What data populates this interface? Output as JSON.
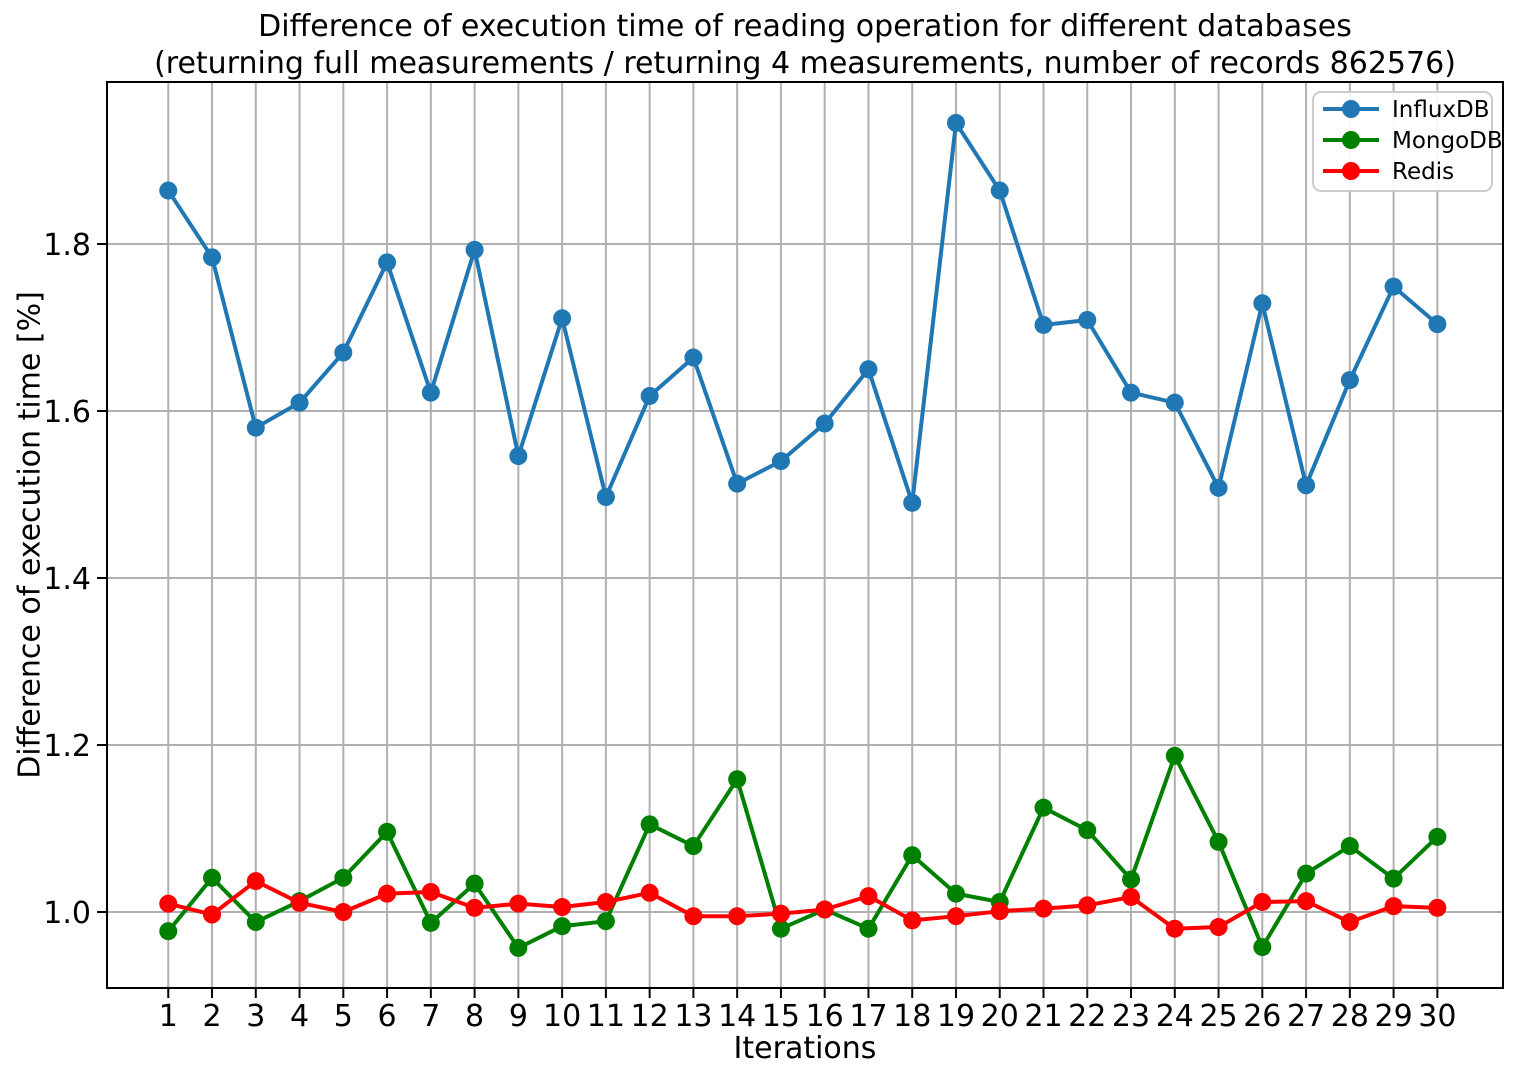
{
  "title": {
    "line1": "Difference of execution time of reading operation for different databases",
    "line2": "(returning full measurements / returning 4 measurements, number of records 862576)"
  },
  "chart_data": {
    "type": "line",
    "title": "Difference of execution time of reading operation for different databases (returning full measurements / returning 4 measurements, number of records 862576)",
    "xlabel": "Iterations",
    "ylabel": "Difference of execution time [%]",
    "x": [
      1,
      2,
      3,
      4,
      5,
      6,
      7,
      8,
      9,
      10,
      11,
      12,
      13,
      14,
      15,
      16,
      17,
      18,
      19,
      20,
      21,
      22,
      23,
      24,
      25,
      26,
      27,
      28,
      29,
      30
    ],
    "series": [
      {
        "name": "InfluxDB",
        "color": "#1f77b4",
        "values": [
          1.864,
          1.784,
          1.58,
          1.61,
          1.67,
          1.778,
          1.622,
          1.793,
          1.546,
          1.711,
          1.497,
          1.618,
          1.664,
          1.513,
          1.54,
          1.585,
          1.65,
          1.49,
          1.945,
          1.864,
          1.703,
          1.709,
          1.622,
          1.61,
          1.508,
          1.729,
          1.511,
          1.637,
          1.749,
          1.704
        ]
      },
      {
        "name": "MongoDB",
        "color": "#008000",
        "values": [
          0.977,
          1.041,
          0.988,
          1.013,
          1.041,
          1.096,
          0.987,
          1.034,
          0.957,
          0.983,
          0.989,
          1.105,
          1.079,
          1.159,
          0.98,
          1.003,
          0.98,
          1.068,
          1.022,
          1.012,
          1.125,
          1.098,
          1.039,
          1.187,
          1.084,
          0.958,
          1.046,
          1.079,
          1.04,
          1.09
        ]
      },
      {
        "name": "Redis",
        "color": "#ff0000",
        "values": [
          1.01,
          0.997,
          1.037,
          1.011,
          1.0,
          1.022,
          1.024,
          1.005,
          1.01,
          1.006,
          1.012,
          1.023,
          0.995,
          0.995,
          0.998,
          1.003,
          1.019,
          0.99,
          0.995,
          1.001,
          1.004,
          1.008,
          1.018,
          0.98,
          0.982,
          1.012,
          1.013,
          0.988,
          1.007,
          1.005
        ]
      }
    ],
    "x_tick_labels": [
      "1",
      "2",
      "3",
      "4",
      "5",
      "6",
      "7",
      "8",
      "9",
      "10",
      "11",
      "12",
      "13",
      "14",
      "15",
      "16",
      "17",
      "18",
      "19",
      "20",
      "21",
      "22",
      "23",
      "24",
      "25",
      "26",
      "27",
      "28",
      "29",
      "30"
    ],
    "y_ticks": [
      1.0,
      1.2,
      1.4,
      1.6,
      1.8
    ],
    "y_tick_labels": [
      "1.0",
      "1.2",
      "1.4",
      "1.6",
      "1.8"
    ],
    "xlim": [
      -0.4,
      31.5
    ],
    "ylim": [
      0.909,
      1.994
    ],
    "grid": true,
    "legend_position": "upper right",
    "grid_color": "#b0b0b0",
    "spine_color": "#000000",
    "legend_border_color": "#cccccc"
  }
}
